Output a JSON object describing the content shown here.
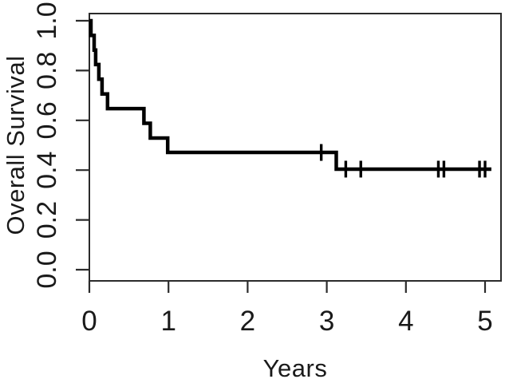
{
  "figure": {
    "background": "#ffffff",
    "text_color": "#1a1a1a",
    "box_color": "#2b2b2b"
  },
  "chart_data": {
    "type": "line",
    "subtype": "kaplan_meier_step_function",
    "title": "",
    "xlabel": "Years",
    "ylabel": "Overall Survival",
    "xlim": [
      0,
      5.2
    ],
    "ylim": [
      -0.04,
      1.03
    ],
    "grid": false,
    "legend": "none",
    "line_color": "#000000",
    "x_ticks": [
      0,
      1,
      2,
      3,
      4,
      5
    ],
    "x_tick_labels": [
      "0",
      "1",
      "2",
      "3",
      "4",
      "5"
    ],
    "y_ticks": [
      0.0,
      0.2,
      0.4,
      0.6,
      0.8,
      1.0
    ],
    "y_tick_labels": [
      "0.0",
      "0.2",
      "0.4",
      "0.6",
      "0.8",
      "1.0"
    ],
    "series": [
      {
        "name": "Overall Survival",
        "style": "step-post",
        "points": [
          [
            0.0,
            1.0
          ],
          [
            0.02,
            0.941
          ],
          [
            0.06,
            0.882
          ],
          [
            0.08,
            0.824
          ],
          [
            0.12,
            0.765
          ],
          [
            0.16,
            0.706
          ],
          [
            0.23,
            0.647
          ],
          [
            0.69,
            0.588
          ],
          [
            0.77,
            0.529
          ],
          [
            0.99,
            0.471
          ],
          [
            3.12,
            0.404
          ]
        ],
        "end_time": 5.08
      }
    ],
    "censor_marks": {
      "series": "Overall Survival",
      "symbol": "vertical-tick",
      "points": [
        [
          2.93,
          0.471
        ],
        [
          3.24,
          0.404
        ],
        [
          3.43,
          0.404
        ],
        [
          4.41,
          0.404
        ],
        [
          4.48,
          0.404
        ],
        [
          4.93,
          0.404
        ],
        [
          5.0,
          0.404
        ]
      ]
    }
  }
}
